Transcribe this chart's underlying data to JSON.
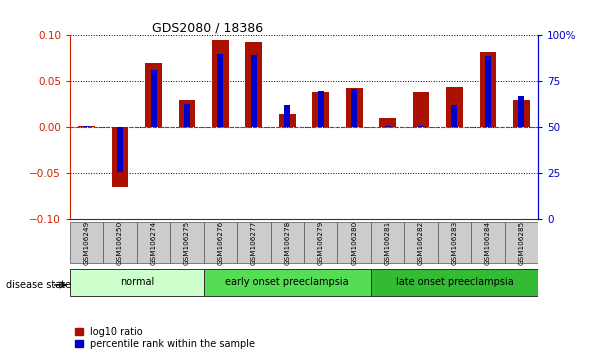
{
  "title": "GDS2080 / 18386",
  "samples": [
    "GSM106249",
    "GSM106250",
    "GSM106274",
    "GSM106275",
    "GSM106276",
    "GSM106277",
    "GSM106278",
    "GSM106279",
    "GSM106280",
    "GSM106281",
    "GSM106282",
    "GSM106283",
    "GSM106284",
    "GSM106285"
  ],
  "log10_ratio": [
    0.002,
    -0.065,
    0.07,
    0.03,
    0.095,
    0.093,
    0.015,
    0.038,
    0.043,
    0.01,
    0.038,
    0.044,
    0.082,
    0.03
  ],
  "percentile_rank_mapped": [
    0.002,
    -0.048,
    0.062,
    0.025,
    0.08,
    0.079,
    0.024,
    0.04,
    0.042,
    0.002,
    0.002,
    0.024,
    0.078,
    0.034
  ],
  "ylim": [
    -0.1,
    0.1
  ],
  "yticks_left": [
    -0.1,
    -0.05,
    0.0,
    0.05,
    0.1
  ],
  "yticks_right_labels": [
    "0",
    "25",
    "50",
    "75",
    "100%"
  ],
  "left_axis_color": "#cc2200",
  "right_axis_color": "#0000cc",
  "bar_color_red": "#aa1100",
  "bar_color_blue": "#0000cc",
  "disease_groups": [
    {
      "label": "normal",
      "start": 0,
      "end": 4,
      "color": "#ccffcc"
    },
    {
      "label": "early onset preeclampsia",
      "start": 4,
      "end": 9,
      "color": "#55dd55"
    },
    {
      "label": "late onset preeclampsia",
      "start": 9,
      "end": 14,
      "color": "#33bb33"
    }
  ],
  "disease_state_label": "disease state",
  "legend_red_label": "log10 ratio",
  "legend_blue_label": "percentile rank within the sample",
  "dotted_line_color": "#000000",
  "zero_line_color": "#cc2200",
  "background_color": "#ffffff",
  "tickbox_color": "#cccccc",
  "bar_width": 0.5,
  "blue_bar_width": 0.18
}
